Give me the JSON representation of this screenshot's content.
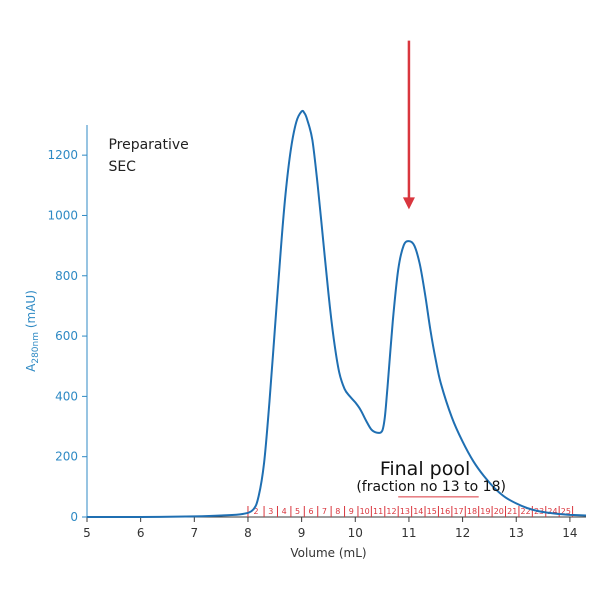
{
  "chart_data": {
    "type": "line",
    "title": "",
    "xlabel": "Volume (mL)",
    "ylabel_main": "A",
    "ylabel_sub": "280nm",
    "ylabel_unit": " (mAU)",
    "xlim": [
      5,
      14.3
    ],
    "ylim": [
      0,
      1300
    ],
    "xticks": [
      5,
      6,
      7,
      8,
      9,
      10,
      11,
      12,
      13,
      14
    ],
    "yticks": [
      0,
      200,
      400,
      600,
      800,
      1000,
      1200
    ],
    "grid": false,
    "legend": "none",
    "series": [
      {
        "color": "#1f6fb2",
        "x": [
          5.0,
          6.0,
          7.0,
          7.5,
          7.9,
          8.1,
          8.2,
          8.3,
          8.4,
          8.5,
          8.6,
          8.7,
          8.8,
          8.9,
          9.0,
          9.05,
          9.1,
          9.2,
          9.3,
          9.4,
          9.5,
          9.6,
          9.7,
          9.8,
          9.9,
          10.0,
          10.1,
          10.2,
          10.3,
          10.4,
          10.5,
          10.55,
          10.6,
          10.7,
          10.8,
          10.9,
          11.0,
          11.1,
          11.2,
          11.3,
          11.4,
          11.5,
          11.6,
          11.8,
          12.0,
          12.2,
          12.4,
          12.6,
          12.8,
          13.0,
          13.2,
          13.4,
          13.6,
          13.8,
          14.0,
          14.3
        ],
        "y": [
          0,
          0,
          2,
          5,
          10,
          25,
          70,
          180,
          380,
          620,
          860,
          1070,
          1220,
          1310,
          1345,
          1340,
          1320,
          1250,
          1100,
          920,
          740,
          590,
          480,
          425,
          400,
          380,
          355,
          320,
          290,
          280,
          285,
          330,
          430,
          650,
          820,
          900,
          915,
          900,
          840,
          740,
          620,
          520,
          440,
          330,
          250,
          185,
          135,
          95,
          65,
          45,
          30,
          20,
          14,
          10,
          7,
          5
        ]
      }
    ],
    "fractions": {
      "labels": [
        "2",
        "3",
        "4",
        "5",
        "6",
        "7",
        "8",
        "9",
        "10",
        "11",
        "12",
        "13",
        "14",
        "15",
        "16",
        "17",
        "18",
        "19",
        "20",
        "21",
        "22",
        "23",
        "24",
        "25"
      ],
      "boundaries": [
        8.0,
        8.3,
        8.55,
        8.8,
        9.05,
        9.3,
        9.55,
        9.8,
        10.05,
        10.3,
        10.55,
        10.8,
        11.05,
        11.3,
        11.55,
        11.8,
        12.05,
        12.3,
        12.55,
        12.8,
        13.05,
        13.3,
        13.55,
        13.8,
        14.05
      ]
    },
    "annotations": {
      "method_line1": "Preparative",
      "method_line2": "SEC",
      "pool_title": "Final pool",
      "pool_subtitle": "(fraction no 13 to 18)",
      "pool_range": [
        10.8,
        12.3
      ],
      "pool_label_anchor": [
        11.3,
        160
      ],
      "pool_subtitle_anchor": [
        11.6,
        100
      ],
      "method_anchor": [
        5.4,
        1220
      ],
      "arrow_x": 11.0,
      "arrow_from_y": 1580,
      "arrow_to_y": 1020,
      "arrow_color": "#d9363e"
    }
  }
}
